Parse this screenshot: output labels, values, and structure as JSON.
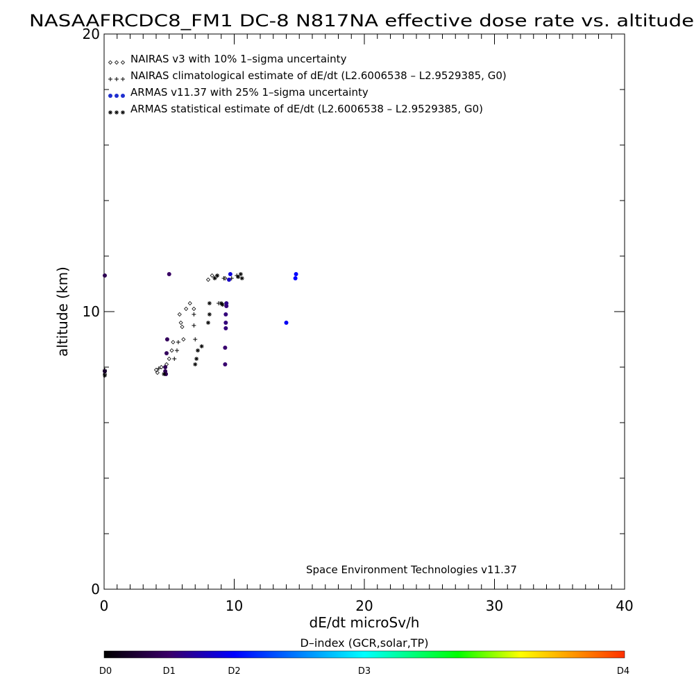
{
  "chart_data": {
    "type": "scatter",
    "title": "NASAAFRCDC8_FM1 DC-8   N817NA effective dose rate vs. altitude",
    "xlabel": "dE/dt microSv/h",
    "ylabel": "altitude (km)",
    "xlim": [
      0,
      40
    ],
    "ylim": [
      0,
      20
    ],
    "xticks": [
      0,
      10,
      20,
      30,
      40
    ],
    "yticks": [
      0,
      10,
      20
    ],
    "x_minor_step": 1,
    "y_minor_step": 2,
    "grid": false,
    "legend_position": "top-left",
    "credit": "Space Environment Technologies v11.37",
    "colorbar": {
      "title": "D–index (GCR,solar,TP)",
      "labels": [
        "D0",
        "D1",
        "D2",
        "D3",
        "D4"
      ],
      "label_positions": [
        0,
        0.125,
        0.25,
        0.5,
        1
      ],
      "stops": [
        "#000000",
        "#3a0068",
        "#0000ff",
        "#00ffff",
        "#00ff00",
        "#ffff00",
        "#ff3000"
      ],
      "stop_positions": [
        0,
        0.125,
        0.25,
        0.5,
        0.68,
        0.8,
        1
      ]
    },
    "series": [
      {
        "name": "NAIRAS v3 with 10% 1–sigma uncertainty",
        "marker": "diamond",
        "color": "#000000",
        "points": [
          [
            0,
            7.85
          ],
          [
            0,
            7.75
          ],
          [
            4.0,
            7.9
          ],
          [
            4.1,
            7.8
          ],
          [
            4.4,
            8.0
          ],
          [
            4.8,
            8.1
          ],
          [
            5.0,
            8.3
          ],
          [
            5.2,
            8.6
          ],
          [
            5.3,
            8.9
          ],
          [
            5.8,
            9.9
          ],
          [
            5.9,
            9.6
          ],
          [
            6.0,
            9.45
          ],
          [
            6.1,
            9.0
          ],
          [
            6.3,
            10.1
          ],
          [
            6.6,
            10.3
          ],
          [
            6.9,
            10.1
          ],
          [
            8.0,
            11.15
          ],
          [
            8.3,
            11.3
          ],
          [
            8.6,
            11.25
          ],
          [
            9.3,
            11.2
          ]
        ]
      },
      {
        "name": "NAIRAS climatological estimate of dE/dt (L2.6006538 – L2.9529385, G0)",
        "marker": "plus",
        "color": "#000000",
        "points": [
          [
            0,
            7.9
          ],
          [
            4.2,
            7.95
          ],
          [
            5.4,
            8.3
          ],
          [
            5.6,
            8.6
          ],
          [
            5.7,
            8.9
          ],
          [
            6.9,
            9.5
          ],
          [
            6.9,
            9.9
          ],
          [
            7.0,
            9.0
          ],
          [
            8.8,
            10.3
          ],
          [
            9.2,
            11.2
          ],
          [
            9.8,
            11.2
          ],
          [
            10.2,
            11.3
          ]
        ]
      },
      {
        "name": "ARMAS v11.37 with 25% 1–sigma uncertainty",
        "marker": "dot",
        "color": "#1f2fd0",
        "points": [
          [
            0,
            11.3,
            0.1
          ],
          [
            0,
            7.85,
            0.05
          ],
          [
            4.7,
            7.85,
            0.1
          ],
          [
            4.7,
            8.0,
            0.1
          ],
          [
            4.75,
            7.75,
            0.1
          ],
          [
            4.8,
            8.5,
            0.11
          ],
          [
            4.85,
            9.0,
            0.11
          ],
          [
            5.0,
            11.35,
            0.12
          ],
          [
            9.3,
            8.1,
            0.13
          ],
          [
            9.3,
            8.7,
            0.13
          ],
          [
            9.35,
            9.4,
            0.14
          ],
          [
            9.35,
            9.6,
            0.14
          ],
          [
            9.35,
            9.9,
            0.14
          ],
          [
            9.4,
            10.2,
            0.14
          ],
          [
            9.4,
            10.3,
            0.15
          ],
          [
            9.6,
            11.15,
            0.2
          ],
          [
            9.7,
            11.35,
            0.22
          ],
          [
            14.0,
            9.6,
            0.24
          ],
          [
            14.7,
            11.2,
            0.25
          ],
          [
            14.75,
            11.35,
            0.25
          ]
        ]
      },
      {
        "name": "ARMAS statistical estimate of dE/dt (L2.6006538 – L2.9529385, G0)",
        "marker": "asterisk",
        "color": "#000000",
        "points": [
          [
            0,
            7.7
          ],
          [
            4.6,
            7.75
          ],
          [
            7.0,
            8.1
          ],
          [
            7.1,
            8.3
          ],
          [
            7.2,
            8.6
          ],
          [
            7.5,
            8.75
          ],
          [
            8.0,
            9.6
          ],
          [
            8.1,
            9.9
          ],
          [
            8.1,
            10.3
          ],
          [
            8.5,
            11.2
          ],
          [
            8.7,
            11.3
          ],
          [
            9.0,
            10.3
          ],
          [
            9.1,
            10.25
          ],
          [
            10.3,
            11.25
          ],
          [
            10.5,
            11.35
          ],
          [
            10.6,
            11.2
          ]
        ]
      }
    ]
  }
}
